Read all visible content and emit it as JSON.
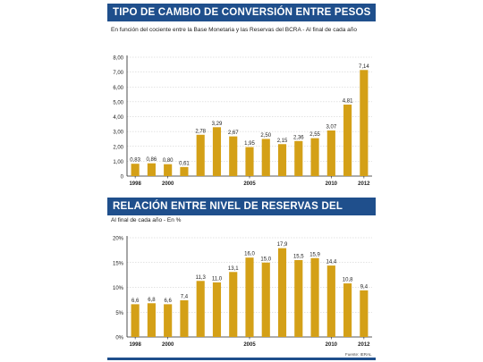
{
  "colors": {
    "banner": "#1f4f8c",
    "bar": "#d4a017",
    "grid": "#c8c8c8",
    "axis": "#222222",
    "text": "#222222"
  },
  "chart_data": [
    {
      "type": "bar",
      "title": "TIPO DE CAMBIO DE CONVERSIÓN ENTRE PESOS Y DÓLARES",
      "subtitle": "En función del cociente entre la Base Monetaria y las Reservas del BCRA - Al final de cada año",
      "categories": [
        "1998",
        "1999",
        "2000",
        "2001",
        "2002",
        "2003",
        "2004",
        "2005",
        "2006",
        "2007",
        "2008",
        "2009",
        "2010",
        "2011",
        "2012"
      ],
      "values": [
        0.83,
        0.86,
        0.8,
        0.61,
        2.78,
        3.29,
        2.67,
        1.95,
        2.5,
        2.15,
        2.36,
        2.55,
        3.07,
        4.81,
        7.14
      ],
      "value_labels": [
        "0,83",
        "0,86",
        "0,80",
        "0,61",
        "2,78",
        "3,29",
        "2,67",
        "1,95",
        "2,50",
        "2,15",
        "2,36",
        "2,55",
        "3,07",
        "4,81",
        "7,14"
      ],
      "yticks": [
        "0",
        "1,00",
        "2,00",
        "3,00",
        "4,00",
        "5,00",
        "6,00",
        "7,00",
        "8,00"
      ],
      "ylim": [
        0,
        8
      ],
      "xtick_labels": [
        {
          "index": 0,
          "label": "1998"
        },
        {
          "index": 2,
          "label": "2000"
        },
        {
          "index": 7,
          "label": "2005"
        },
        {
          "index": 12,
          "label": "2010"
        },
        {
          "index": 14,
          "label": "2012"
        }
      ],
      "grid": true
    },
    {
      "type": "bar",
      "title": "RELACIÓN ENTRE NIVEL DE RESERVAS DEL BCRA Y EL PBI",
      "subtitle": "Al final de cada año - En %",
      "categories": [
        "1998",
        "1999",
        "2000",
        "2001",
        "2002",
        "2003",
        "2004",
        "2005",
        "2006",
        "2007",
        "2008",
        "2009",
        "2010",
        "2011",
        "2012"
      ],
      "values": [
        6.6,
        6.8,
        6.6,
        7.4,
        11.3,
        11.0,
        13.1,
        16.0,
        15.0,
        17.9,
        15.5,
        15.9,
        14.4,
        10.8,
        9.4
      ],
      "value_labels": [
        "6,6",
        "6,8",
        "6,6",
        "7,4",
        "11,3",
        "11,0",
        "13,1",
        "16,0",
        "15,0",
        "17,9",
        "15,5",
        "15,9",
        "14,4",
        "10,8",
        "9,4"
      ],
      "yticks": [
        "0%",
        "5%",
        "10%",
        "15%",
        "20%"
      ],
      "ylim": [
        0,
        20
      ],
      "xtick_labels": [
        {
          "index": 0,
          "label": "1998"
        },
        {
          "index": 2,
          "label": "2000"
        },
        {
          "index": 7,
          "label": "2005"
        },
        {
          "index": 12,
          "label": "2010"
        },
        {
          "index": 14,
          "label": "2012"
        }
      ],
      "grid": true,
      "source": "Fuente: IERAL"
    }
  ]
}
